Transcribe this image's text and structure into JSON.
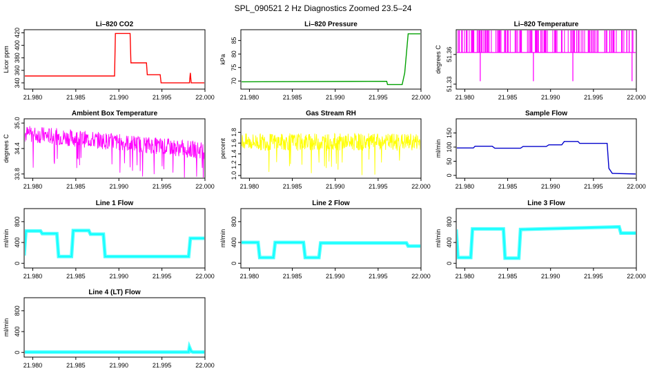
{
  "main_title": "SPL_090521  2 Hz Diagnostics Zoomed 23.5–24",
  "chart_data": [
    {
      "type": "line",
      "title": "Li–820 CO2",
      "ylabel": "Licor ppm",
      "color": "#ff0000",
      "xlim": [
        21.979,
        22.0
      ],
      "ylim": [
        330,
        425
      ],
      "yticks": [
        "340",
        "360",
        "380",
        "400",
        "420"
      ],
      "xticks": [
        "21.980",
        "21.985",
        "21.990",
        "21.995",
        "22.000"
      ],
      "series": [
        {
          "x": [
            21.979,
            21.9895,
            21.9896,
            21.9913,
            21.9914,
            21.9932,
            21.9933,
            21.9948,
            21.9949,
            21.9982,
            21.9983,
            21.9984,
            21.9985,
            22.0
          ],
          "y": [
            351,
            351,
            419,
            419,
            372,
            372,
            353,
            353,
            340,
            340,
            356,
            340,
            340,
            340
          ]
        }
      ]
    },
    {
      "type": "line",
      "title": "Li–820 Pressure",
      "ylabel": "kPa",
      "color": "#00a000",
      "xlim": [
        21.979,
        22.0
      ],
      "ylim": [
        67,
        89
      ],
      "yticks": [
        "70",
        "75",
        "80",
        "85"
      ],
      "xticks": [
        "21.980",
        "21.985",
        "21.990",
        "21.995",
        "22.000"
      ],
      "series": [
        {
          "x": [
            21.979,
            21.996,
            21.9961,
            21.9978,
            21.9981,
            21.9985,
            22.0
          ],
          "y": [
            69.7,
            69.9,
            68.7,
            68.7,
            73,
            87.5,
            87.5
          ]
        }
      ]
    },
    {
      "type": "line",
      "title": "Li–820 Temperature",
      "ylabel": "degrees C",
      "color": "#ff00ff",
      "xlim": [
        21.979,
        22.0
      ],
      "ylim": [
        51.325,
        51.385
      ],
      "yticks": [
        "51.33",
        "51.36"
      ],
      "xticks": [
        "21.980",
        "21.985",
        "21.990",
        "21.995",
        "22.000"
      ],
      "series": [
        {
          "x": [
            21.979,
            22.0
          ],
          "y": [
            51.362,
            51.362
          ]
        }
      ]
    },
    {
      "type": "line",
      "title": "Ambient Box Temperature",
      "ylabel": "degrees C",
      "color": "#ff00ff",
      "xlim": [
        21.979,
        22.0
      ],
      "ylim": [
        33.7,
        35.1
      ],
      "yticks": [
        "33.8",
        "34.4",
        "35.0"
      ],
      "xticks": [
        "21.980",
        "21.985",
        "21.990",
        "21.995",
        "22.000"
      ],
      "series": [
        {
          "x": [
            21.979,
            21.99,
            22.0
          ],
          "y": [
            34.75,
            34.55,
            34.35
          ]
        }
      ]
    },
    {
      "type": "line",
      "title": "Gas Stream RH",
      "ylabel": "percent",
      "color": "#ffff00",
      "xlim": [
        21.979,
        22.0
      ],
      "ylim": [
        0.95,
        2.05
      ],
      "yticks": [
        "1.0",
        "1.2",
        "1.4",
        "1.6",
        "1.8"
      ],
      "xticks": [
        "21.980",
        "21.985",
        "21.990",
        "21.995",
        "22.000"
      ],
      "series": [
        {
          "x": [
            21.979,
            22.0
          ],
          "y": [
            1.62,
            1.62
          ]
        }
      ]
    },
    {
      "type": "line",
      "title": "Sample Flow",
      "ylabel": "ml/min",
      "color": "#0000cc",
      "xlim": [
        21.979,
        22.0
      ],
      "ylim": [
        -10,
        200
      ],
      "yticks": [
        "0",
        "50",
        "100",
        "150"
      ],
      "xticks": [
        "21.980",
        "21.985",
        "21.990",
        "21.995",
        "22.000"
      ],
      "series": [
        {
          "x": [
            21.979,
            21.981,
            21.9812,
            21.9832,
            21.9835,
            21.9865,
            21.9868,
            21.9895,
            21.9898,
            21.9913,
            21.9916,
            21.9932,
            21.9934,
            21.9966,
            21.9968,
            21.9972,
            22.0
          ],
          "y": [
            97,
            97,
            103,
            103,
            96,
            96,
            102,
            102,
            108,
            108,
            120,
            120,
            113,
            113,
            25,
            7,
            5
          ]
        }
      ]
    },
    {
      "type": "line",
      "title": "Line 1 Flow",
      "ylabel": "ml/min",
      "color": "#00ffff",
      "xlim": [
        21.979,
        22.0
      ],
      "ylim": [
        -90,
        1050
      ],
      "yticks": [
        "0",
        "400",
        "800"
      ],
      "xticks": [
        "21.980",
        "21.985",
        "21.990",
        "21.995",
        "22.000"
      ],
      "series": [
        {
          "x": [
            21.979,
            21.9792,
            21.9809,
            21.9811,
            21.9828,
            21.983,
            21.9845,
            21.9847,
            21.9865,
            21.9867,
            21.9882,
            21.9884,
            21.9981,
            21.9983,
            22.0
          ],
          "y": [
            150,
            620,
            620,
            570,
            570,
            130,
            130,
            630,
            630,
            560,
            560,
            130,
            130,
            480,
            480
          ]
        }
      ]
    },
    {
      "type": "line",
      "title": "Line 2 Flow",
      "ylabel": "ml/min",
      "color": "#00ffff",
      "xlim": [
        21.979,
        22.0
      ],
      "ylim": [
        -90,
        1050
      ],
      "yticks": [
        "0",
        "400",
        "800"
      ],
      "xticks": [
        "21.980",
        "21.985",
        "21.990",
        "21.995",
        "22.000"
      ],
      "series": [
        {
          "x": [
            21.979,
            21.981,
            21.9812,
            21.9828,
            21.983,
            21.9863,
            21.9865,
            21.9881,
            21.9883,
            21.9983,
            21.9985,
            22.0
          ],
          "y": [
            400,
            400,
            110,
            110,
            400,
            400,
            110,
            110,
            390,
            390,
            330,
            330
          ]
        }
      ]
    },
    {
      "type": "line",
      "title": "Line 3 Flow",
      "ylabel": "ml/min",
      "color": "#00ffff",
      "xlim": [
        21.979,
        22.0
      ],
      "ylim": [
        -90,
        1050
      ],
      "yticks": [
        "0",
        "400",
        "800"
      ],
      "xticks": [
        "21.980",
        "21.985",
        "21.990",
        "21.995",
        "22.000"
      ],
      "series": [
        {
          "x": [
            21.979,
            21.9792,
            21.9807,
            21.9809,
            21.9845,
            21.9847,
            21.9863,
            21.9865,
            21.998,
            21.9982,
            22.0
          ],
          "y": [
            650,
            110,
            110,
            660,
            660,
            100,
            100,
            650,
            700,
            580,
            580
          ]
        }
      ]
    },
    {
      "type": "line",
      "title": "Line 4 (LT) Flow",
      "ylabel": "ml/min",
      "color": "#00ffff",
      "xlim": [
        21.979,
        22.0
      ],
      "ylim": [
        -90,
        1050
      ],
      "yticks": [
        "0",
        "400",
        "800"
      ],
      "xticks": [
        "21.980",
        "21.985",
        "21.990",
        "21.995",
        "22.000"
      ],
      "series": [
        {
          "x": [
            21.979,
            21.9981,
            21.9982,
            21.9984,
            21.9986,
            22.0
          ],
          "y": [
            5,
            5,
            100,
            20,
            5,
            5
          ]
        }
      ]
    }
  ]
}
